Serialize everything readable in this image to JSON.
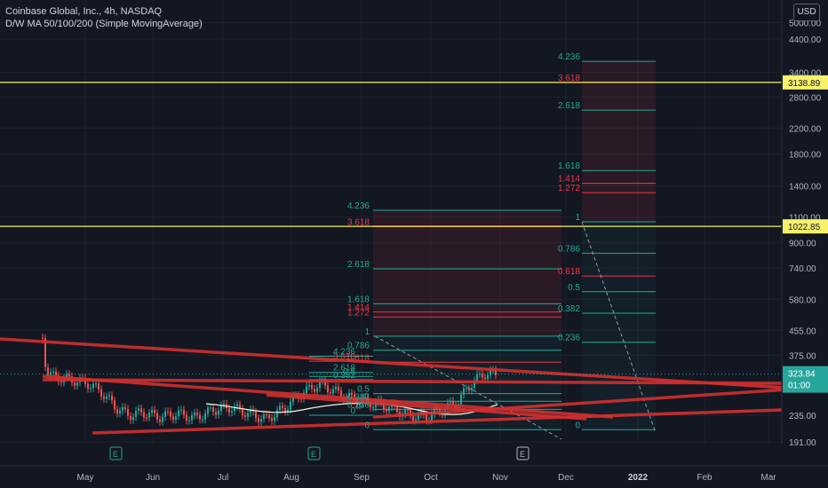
{
  "header": {
    "title": "Coinbase Global, Inc., 4h, NASDAQ",
    "indicator": "D/W MA 50/100/200 (Simple MovingAverage)"
  },
  "currency_button": "USD",
  "chart_data": {
    "type": "candlestick",
    "title": "Coinbase Global, Inc., 4h, NASDAQ",
    "y_scale": "log",
    "ylim": [
      180,
      5000
    ],
    "y_ticks": [
      "5000.00",
      "4400.00",
      "3400.00",
      "2800.00",
      "2200.00",
      "1800.00",
      "1400.00",
      "1100.00",
      "900.00",
      "740.00",
      "580.00",
      "455.00",
      "375.00",
      "323.84",
      "235.00",
      "191.00"
    ],
    "x_ticks": [
      "May",
      "Jun",
      "Jul",
      "Aug",
      "Sep",
      "Oct",
      "Nov",
      "Dec",
      "2022",
      "Feb",
      "Mar"
    ],
    "current_price": {
      "value": 323.84,
      "label": "323.84",
      "countdown": "01:00"
    },
    "horizontal_levels": [
      {
        "value": 3138.89,
        "label": "3138.89",
        "color": "#f7f16c"
      },
      {
        "value": 1022.85,
        "label": "1022.85",
        "color": "#f7f16c"
      }
    ],
    "fib_extensions": [
      {
        "name": "ext_small",
        "levels": [
          {
            "ratio": "0",
            "price": 210
          },
          {
            "ratio": "0.236",
            "price": 246
          },
          {
            "ratio": "0.382",
            "price": 262
          },
          {
            "ratio": "0.5",
            "price": 278
          },
          {
            "ratio": "0.618",
            "price": 355
          },
          {
            "ratio": "0.786",
            "price": 390
          },
          {
            "ratio": "1",
            "price": 435
          },
          {
            "ratio": "1.272",
            "price": 505
          },
          {
            "ratio": "1.414",
            "price": 525
          },
          {
            "ratio": "1.618",
            "price": 560
          },
          {
            "ratio": "2.618",
            "price": 735
          },
          {
            "ratio": "3.618",
            "price": 1020
          },
          {
            "ratio": "4.236",
            "price": 1160
          }
        ]
      },
      {
        "name": "ext_large",
        "levels": [
          {
            "ratio": "0",
            "price": 210
          },
          {
            "ratio": "0.236",
            "price": 415
          },
          {
            "ratio": "0.382",
            "price": 520
          },
          {
            "ratio": "0.5",
            "price": 615
          },
          {
            "ratio": "0.618",
            "price": 695
          },
          {
            "ratio": "0.786",
            "price": 830
          },
          {
            "ratio": "1",
            "price": 1060
          },
          {
            "ratio": "1.272",
            "price": 1330
          },
          {
            "ratio": "1.414",
            "price": 1430
          },
          {
            "ratio": "1.618",
            "price": 1580
          },
          {
            "ratio": "2.618",
            "price": 2530
          },
          {
            "ratio": "3.618",
            "price": 3138
          },
          {
            "ratio": "4.236",
            "price": 3700
          }
        ]
      },
      {
        "name": "ext_mini",
        "levels": [
          {
            "ratio": "0",
            "price": 235
          },
          {
            "ratio": "4.236",
            "price": 372
          },
          {
            "ratio": "3.618",
            "price": 358
          },
          {
            "ratio": "2.618",
            "price": 328
          },
          {
            "ratio": "0.382",
            "price": 310
          },
          {
            "ratio": "0.5",
            "price": 318
          }
        ]
      }
    ],
    "earnings_markers": [
      "E",
      "E",
      "E"
    ],
    "grid": true,
    "legend": "none"
  }
}
